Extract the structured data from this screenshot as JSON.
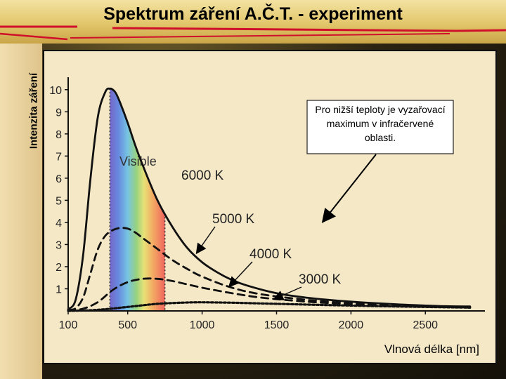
{
  "slide": {
    "title": "Spektrum záření A.Č.T. - experiment",
    "ylabel": "Intenzita záření",
    "xlabel": "Vlnová délka [nm]",
    "callout": "Pro nižší teploty je vyzařovací maximum v infračervené oblasti.",
    "visible_band_label": "Visible"
  },
  "colors": {
    "title_band": "#e2c66a",
    "plot_bg": "#f5e8c7",
    "accent_red": "#d0102a"
  },
  "chart_data": {
    "type": "line",
    "xlim": [
      100,
      2900
    ],
    "ylim": [
      0,
      10.5
    ],
    "xticks": [
      100,
      500,
      1000,
      1500,
      2000,
      2500
    ],
    "yticks": [
      1,
      2,
      3,
      4,
      5,
      6,
      7,
      8,
      9,
      10
    ],
    "visible_band": [
      380,
      750
    ],
    "grid": false,
    "series": [
      {
        "name": "6000 K",
        "style": "solid",
        "x": [
          100,
          150,
          200,
          250,
          300,
          350,
          380,
          400,
          420,
          450,
          500,
          550,
          600,
          700,
          800,
          900,
          1000,
          1100,
          1200,
          1300,
          1500,
          1700,
          2000,
          2300,
          2600,
          2800
        ],
        "y": [
          0.08,
          0.5,
          2.5,
          6.0,
          8.8,
          9.9,
          10.05,
          10.0,
          9.85,
          9.4,
          8.5,
          7.5,
          6.6,
          5.0,
          3.8,
          2.85,
          2.2,
          1.75,
          1.4,
          1.15,
          0.8,
          0.6,
          0.42,
          0.3,
          0.22,
          0.2
        ],
        "label_at": [
          255,
          6.0
        ]
      },
      {
        "name": "5000 K",
        "style": "dashed",
        "x": [
          100,
          150,
          200,
          250,
          300,
          350,
          400,
          450,
          500,
          550,
          600,
          700,
          800,
          900,
          1000,
          1200,
          1400,
          1700,
          2000,
          2300,
          2800
        ],
        "y": [
          0.05,
          0.12,
          0.6,
          1.7,
          2.8,
          3.4,
          3.65,
          3.75,
          3.72,
          3.55,
          3.3,
          2.8,
          2.3,
          1.9,
          1.55,
          1.05,
          0.75,
          0.5,
          0.35,
          0.25,
          0.18
        ],
        "label_at": [
          250,
          3.1
        ]
      },
      {
        "name": "4000 K",
        "style": "dashed",
        "x": [
          100,
          200,
          300,
          400,
          500,
          600,
          700,
          800,
          900,
          1000,
          1200,
          1400,
          1700,
          2000,
          2300,
          2800
        ],
        "y": [
          0.03,
          0.1,
          0.4,
          0.95,
          1.3,
          1.45,
          1.45,
          1.35,
          1.2,
          1.05,
          0.8,
          0.6,
          0.42,
          0.3,
          0.22,
          0.15
        ],
        "label_at": [
          255,
          1.6
        ]
      },
      {
        "name": "3000 K",
        "style": "dotted",
        "x": [
          100,
          300,
          500,
          700,
          900,
          1000,
          1200,
          1500,
          2000,
          2500,
          2800
        ],
        "y": [
          0.0,
          0.05,
          0.18,
          0.32,
          0.38,
          0.39,
          0.37,
          0.32,
          0.24,
          0.18,
          0.15
        ],
        "label_at": [
          255,
          0.45
        ]
      }
    ]
  }
}
